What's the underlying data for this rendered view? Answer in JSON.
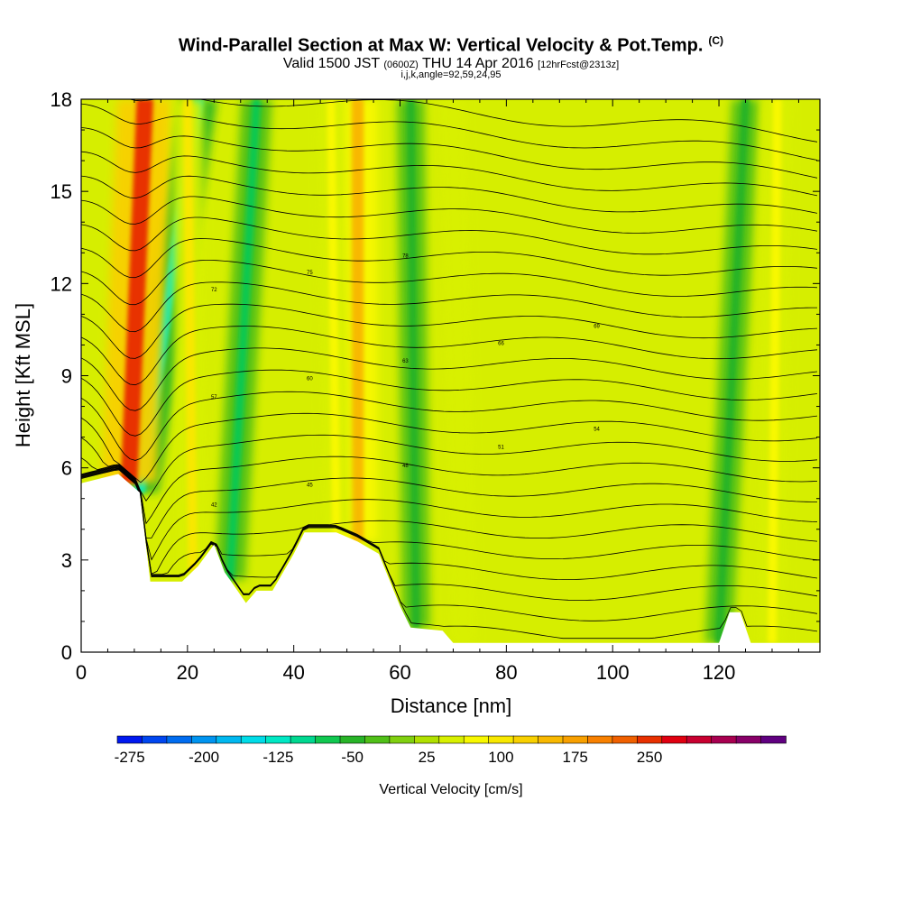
{
  "header": {
    "title": "Wind-Parallel Section at Max W: Vertical Velocity & Pot.Temp.",
    "title_unit": "(C)",
    "valid_a": "Valid 1500 JST",
    "valid_z": "(0600Z)",
    "valid_b": "THU 14 Apr 2016",
    "forecast": "[12hrFcst@2313z]",
    "subtitle": "i,j,k,angle=92,59,24,95"
  },
  "chart_data": {
    "type": "heatmap",
    "title": "Wind-Parallel Section at Max W: Vertical Velocity & Pot.Temp.",
    "xlabel": "Distance [nm]",
    "ylabel": "Height [Kft MSL]",
    "xlim": [
      0,
      139
    ],
    "ylim": [
      0,
      18
    ],
    "x_ticks": [
      0,
      20,
      40,
      60,
      80,
      100,
      120
    ],
    "y_ticks": [
      0,
      3,
      6,
      9,
      12,
      15,
      18
    ],
    "colorbar": {
      "label": "Vertical Velocity [cm/s]",
      "tick_labels": [
        "-275",
        "-200",
        "-125",
        "-50",
        "25",
        "100",
        "175",
        "250"
      ],
      "tick_values": [
        -275,
        -200,
        -125,
        -50,
        25,
        100,
        175,
        250
      ],
      "colors": [
        "#0018f0",
        "#0046f0",
        "#006cf0",
        "#0094f0",
        "#00b8f0",
        "#00dce8",
        "#00e8c4",
        "#00d890",
        "#10c850",
        "#28b428",
        "#50c018",
        "#80d010",
        "#b0e000",
        "#d8f000",
        "#f8f800",
        "#f8e800",
        "#f8d000",
        "#f8b800",
        "#f8a000",
        "#f88000",
        "#f06000",
        "#e83000",
        "#e00010",
        "#c80030",
        "#a80050",
        "#880068",
        "#600080"
      ]
    },
    "updrafts": [
      {
        "x_bottom": 9,
        "x_top": 12,
        "value": 250
      },
      {
        "x_bottom": 52,
        "x_top": 52,
        "value": 150
      },
      {
        "x_bottom": 21,
        "x_top": 20,
        "value": 90
      },
      {
        "x_bottom": 48,
        "x_top": 47,
        "value": 70
      },
      {
        "x_bottom": 72,
        "x_top": 70,
        "value": 60
      },
      {
        "x_bottom": 130,
        "x_top": 131,
        "value": 80
      }
    ],
    "downdrafts": [
      {
        "x_bottom": 11,
        "x_top": 22,
        "value": -130
      },
      {
        "x_bottom": 28,
        "x_top": 33,
        "value": -80
      },
      {
        "x_bottom": 63,
        "x_top": 62,
        "value": -60
      },
      {
        "x_bottom": 120,
        "x_top": 125,
        "value": -60
      }
    ],
    "terrain": [
      [
        0,
        5.5
      ],
      [
        7,
        5.8
      ],
      [
        11,
        5.2
      ],
      [
        13,
        2.3
      ],
      [
        19,
        2.3
      ],
      [
        22,
        2.8
      ],
      [
        25,
        3.5
      ],
      [
        27,
        2.6
      ],
      [
        31,
        1.6
      ],
      [
        33,
        2
      ],
      [
        36,
        2
      ],
      [
        40,
        3.2
      ],
      [
        42,
        3.9
      ],
      [
        48,
        3.9
      ],
      [
        52,
        3.6
      ],
      [
        56,
        3.2
      ],
      [
        60,
        1.5
      ],
      [
        62,
        0.8
      ],
      [
        68,
        0.7
      ],
      [
        70,
        0.3
      ],
      [
        120,
        0.3
      ],
      [
        122,
        1.3
      ],
      [
        124,
        1.3
      ],
      [
        126,
        0.3
      ],
      [
        139,
        0.3
      ]
    ],
    "contour_labels": [
      "42",
      "45",
      "48",
      "51",
      "54",
      "57",
      "60",
      "63",
      "66",
      "69",
      "72",
      "75",
      "78"
    ]
  }
}
